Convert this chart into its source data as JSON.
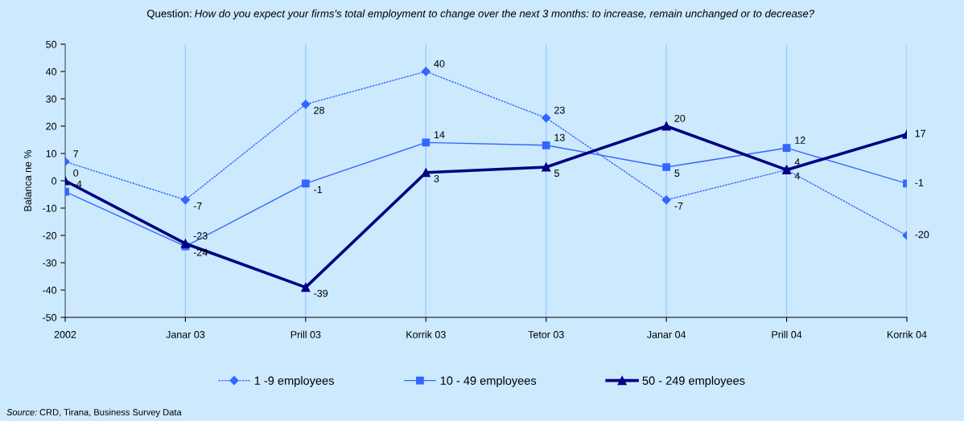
{
  "chart_data": {
    "type": "line",
    "title": "Question: How do you expect your firms's total employment to change over the next 3 months: to increase, remain unchanged or to decrease?",
    "ylabel": "Balanca ne %",
    "categories": [
      "2002",
      "Janar 03",
      "Prill 03",
      "Korrik 03",
      "Tetor 03",
      "Janar 04",
      "Prill 04",
      "Korrik 04"
    ],
    "series": [
      {
        "name": "1 -9 employees",
        "color": "#3366ff",
        "marker": "diamond",
        "line_style": "dotted",
        "values": [
          7,
          -7,
          28,
          40,
          23,
          -7,
          4,
          -20
        ]
      },
      {
        "name": "10 - 49 employees",
        "color": "#3366ff",
        "marker": "square",
        "line_style": "solid",
        "values": [
          -4,
          -24,
          -1,
          14,
          13,
          5,
          12,
          -1
        ]
      },
      {
        "name": "50 - 249 employees",
        "color": "#000080",
        "marker": "triangle",
        "line_style": "solid",
        "values": [
          0,
          -23,
          -39,
          3,
          5,
          20,
          4,
          17
        ]
      }
    ],
    "ylim": [
      -50,
      50
    ],
    "yticks": [
      -50,
      -40,
      -30,
      -20,
      -10,
      0,
      10,
      20,
      30,
      40,
      50
    ],
    "grid": "x",
    "legend": "bottom",
    "data_labels": true,
    "annotations": [
      "Source: CRD, Tirana, Business Survey Data"
    ]
  }
}
